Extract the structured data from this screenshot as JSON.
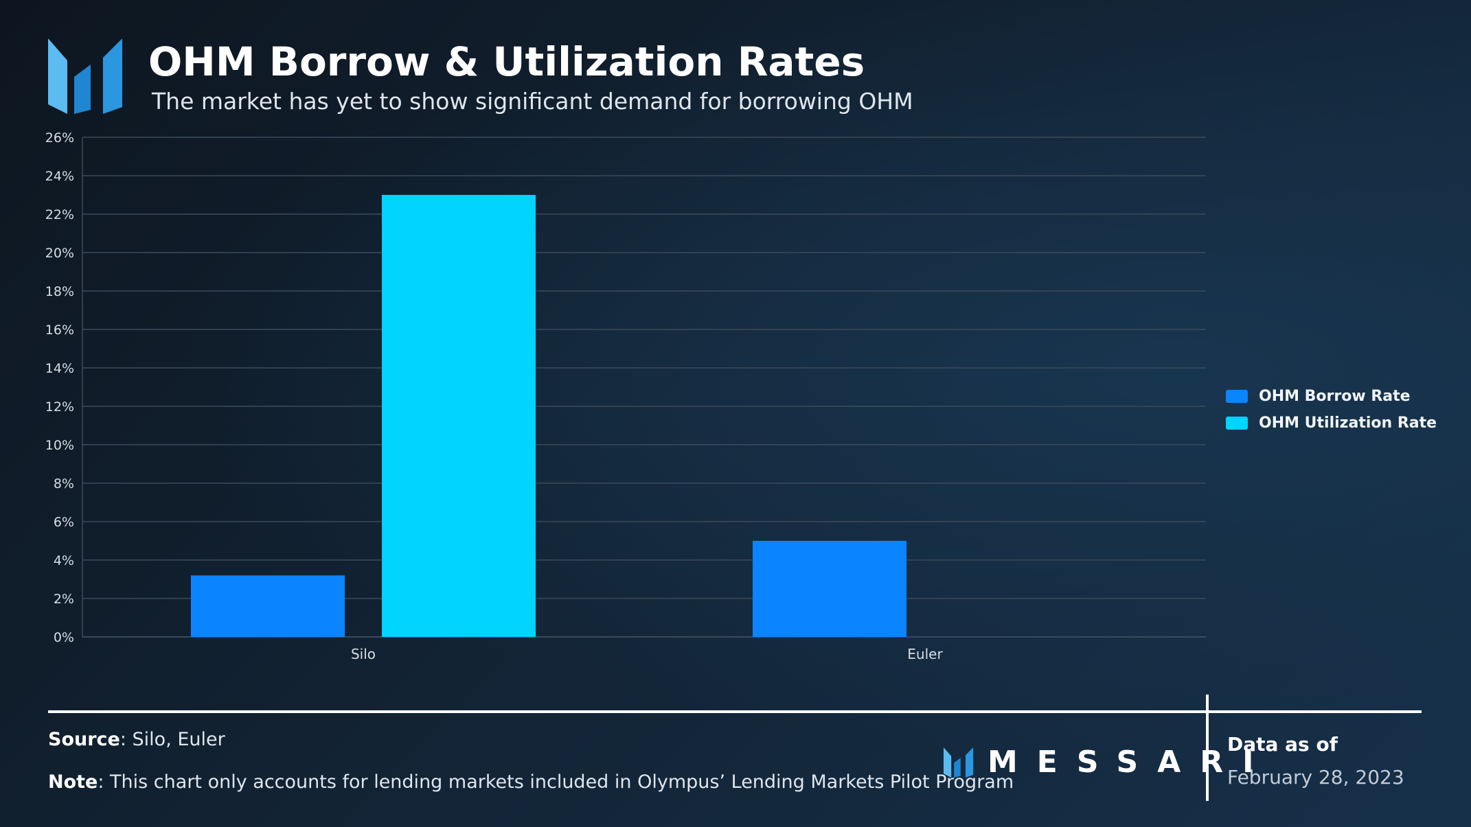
{
  "header": {
    "title": "OHM Borrow & Utilization Rates",
    "subtitle": "The market has yet to show significant demand for borrowing OHM"
  },
  "chart_data": {
    "type": "bar",
    "title": "OHM Borrow & Utilization Rates",
    "xlabel": "",
    "ylabel": "",
    "categories": [
      "Silo",
      "Euler"
    ],
    "series": [
      {
        "name": "OHM Borrow Rate",
        "color": "#0a84ff",
        "values": [
          3.2,
          5.0
        ]
      },
      {
        "name": "OHM Utilization Rate",
        "color": "#00d4ff",
        "values": [
          23.0,
          0
        ]
      }
    ],
    "ylim": [
      0,
      26
    ],
    "y_ticks": [
      0,
      2,
      4,
      6,
      8,
      10,
      12,
      14,
      16,
      18,
      20,
      22,
      24,
      26
    ],
    "y_tick_labels": [
      "0%",
      "2%",
      "4%",
      "6%",
      "8%",
      "10%",
      "12%",
      "14%",
      "16%",
      "18%",
      "20%",
      "22%",
      "24%",
      "26%"
    ],
    "grid": true,
    "legend_position": "right"
  },
  "footer": {
    "source_label": "Source",
    "source_text": ": Silo, Euler",
    "note_label": "Note",
    "note_text": ": This chart only accounts for lending markets included in Olympus’ Lending Markets Pilot Program",
    "brand": "MESSARI",
    "data_as_of_label": "Data as of",
    "data_as_of_date": "February 28, 2023"
  },
  "colors": {
    "logo_light": "#5bbcf2",
    "logo_dark": "#1f86d1",
    "grid": "#3b4a5a"
  }
}
